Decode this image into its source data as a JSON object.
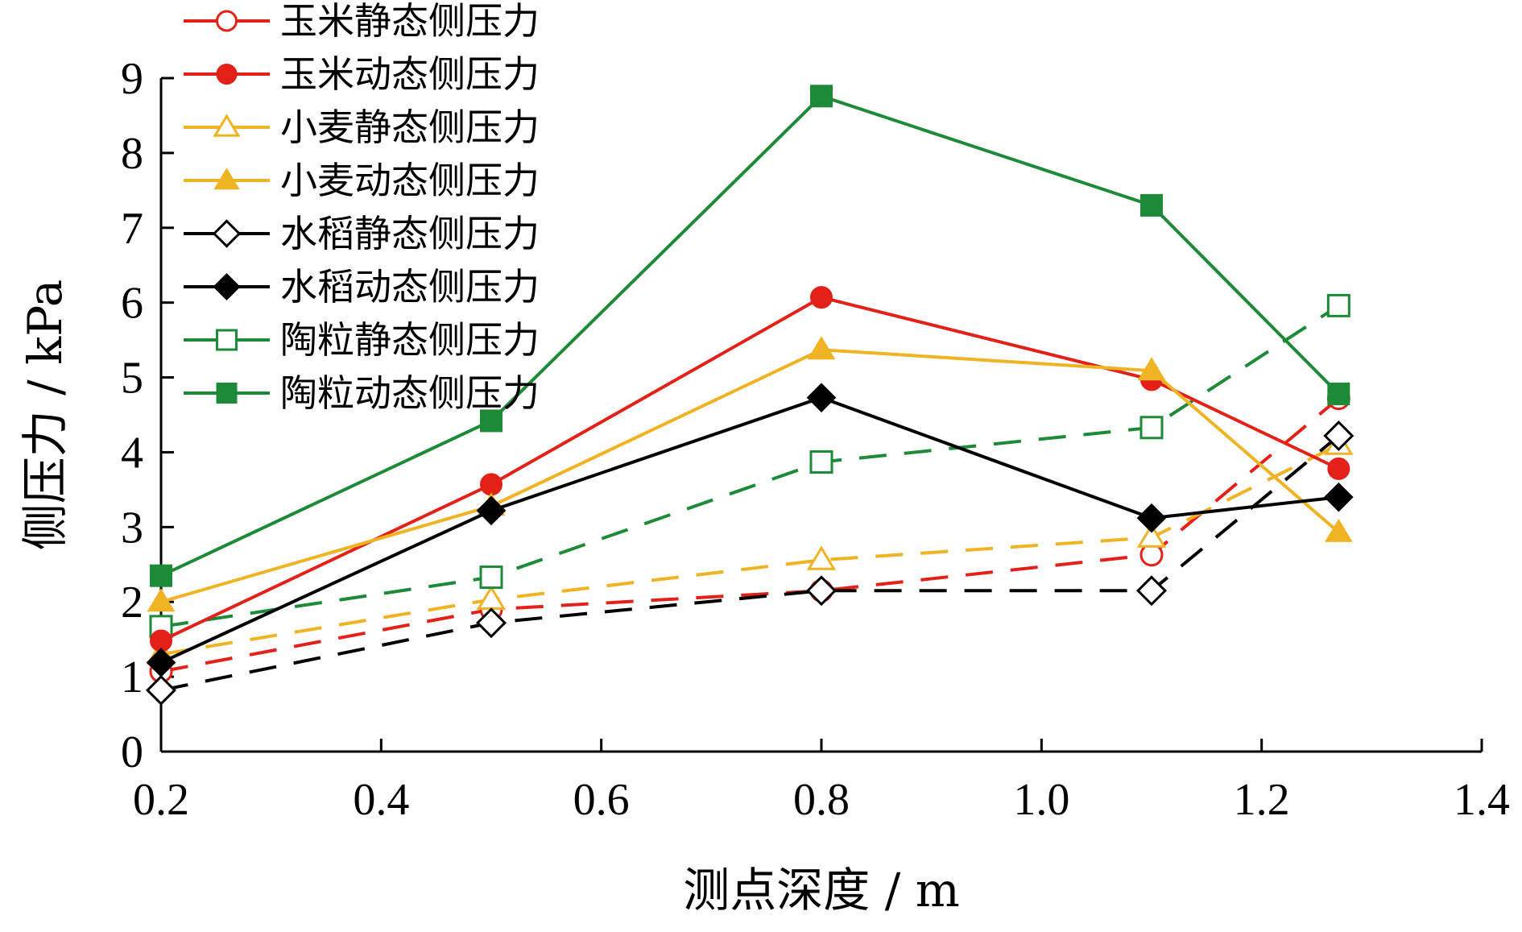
{
  "chart_data": {
    "type": "line",
    "title": "",
    "xlabel": "测点深度 / m",
    "ylabel": "侧压力 / kPa",
    "xlim": [
      0.2,
      1.4
    ],
    "ylim": [
      0,
      9
    ],
    "xticks": [
      "0.2",
      "0.4",
      "0.6",
      "0.8",
      "1.0",
      "1.2",
      "1.4"
    ],
    "yticks": [
      "0",
      "1",
      "2",
      "3",
      "4",
      "5",
      "6",
      "7",
      "8",
      "9"
    ],
    "x": [
      0.2,
      0.5,
      0.8,
      1.1,
      1.27
    ],
    "grid": false,
    "legend_position": "top-left",
    "series": [
      {
        "name": "玉米静态侧压力",
        "values": [
          1.07,
          1.9,
          2.15,
          2.63,
          4.72
        ],
        "color": "#e32118",
        "marker": "circle-open",
        "dashed": true
      },
      {
        "name": "玉米动态侧压力",
        "values": [
          1.48,
          3.57,
          6.07,
          4.97,
          3.78
        ],
        "color": "#e32118",
        "marker": "circle-filled",
        "dashed": false
      },
      {
        "name": "小麦静态侧压力",
        "values": [
          1.3,
          2.03,
          2.56,
          2.86,
          4.1
        ],
        "color": "#f0b323",
        "marker": "triangle-open",
        "dashed": true
      },
      {
        "name": "小麦动态侧压力",
        "values": [
          2.0,
          3.28,
          5.37,
          5.09,
          2.93
        ],
        "color": "#f0b323",
        "marker": "triangle-filled",
        "dashed": false
      },
      {
        "name": "水稻静态侧压力",
        "values": [
          0.82,
          1.72,
          2.15,
          2.15,
          4.22
        ],
        "color": "#000000",
        "marker": "diamond-open",
        "dashed": true
      },
      {
        "name": "水稻动态侧压力",
        "values": [
          1.19,
          3.22,
          4.73,
          3.12,
          3.4
        ],
        "color": "#000000",
        "marker": "diamond-filled",
        "dashed": false
      },
      {
        "name": "陶粒静态侧压力",
        "values": [
          1.67,
          2.33,
          3.87,
          4.33,
          5.96
        ],
        "color": "#1d8a37",
        "marker": "square-open",
        "dashed": true
      },
      {
        "name": "陶粒动态侧压力",
        "values": [
          2.35,
          4.42,
          8.76,
          7.3,
          4.78
        ],
        "color": "#1d8a37",
        "marker": "square-filled",
        "dashed": false
      }
    ]
  }
}
